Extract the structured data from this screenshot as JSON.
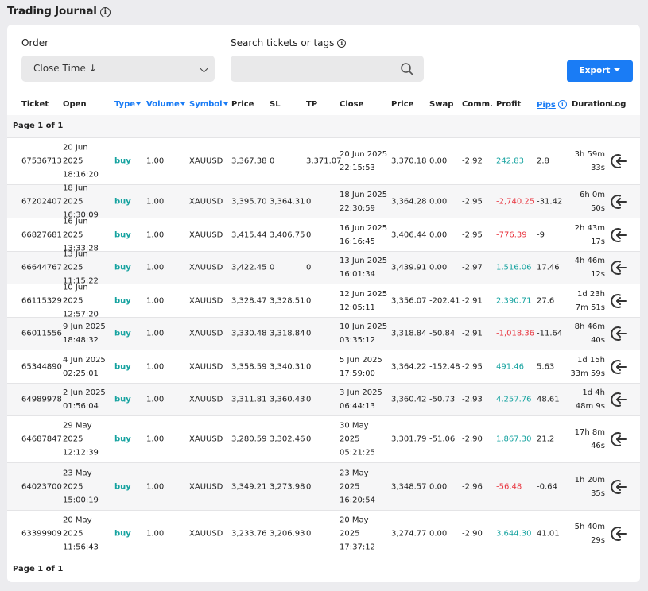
{
  "page": {
    "title": "Trading Journal",
    "title_info_icon": "info-icon"
  },
  "controls": {
    "order_label": "Order",
    "order_value": "Close Time ↓",
    "search_label": "Search tickets or tags",
    "search_value": "",
    "search_placeholder": "",
    "export_label": "Export"
  },
  "columns": {
    "ticket": "Ticket",
    "open": "Open",
    "type": "Type",
    "volume": "Volume",
    "symbol": "Symbol",
    "price": "Price",
    "sl": "SL",
    "tp": "TP",
    "close": "Close",
    "close_price": "Price",
    "swap": "Swap",
    "comm": "Comm.",
    "profit": "Profit",
    "pips": "Pips",
    "duration": "Duration",
    "log": "Log"
  },
  "pagination": {
    "top": "Page 1 of 1",
    "bottom": "Page 1 of 1"
  },
  "colors": {
    "accent": "#1a7cf5",
    "positive": "#16a3a0",
    "negative": "#e8343e",
    "buy": "#16a3a0"
  },
  "rows": [
    {
      "ticket": "67536713",
      "open": "20 Jun 2025 18:16:20",
      "type": "buy",
      "volume": "1.00",
      "symbol": "XAUUSD",
      "price": "3,367.38",
      "sl": "0",
      "tp": "3,371.07",
      "close": "20 Jun 2025 22:15:53",
      "close_price": "3,370.18",
      "swap": "0.00",
      "comm": "-2.92",
      "profit": "242.83",
      "profit_sign": "pos",
      "pips": "2.8",
      "duration": "3h 59m 33s"
    },
    {
      "ticket": "67202407",
      "open": "18 Jun 2025 16:30:09",
      "type": "buy",
      "volume": "1.00",
      "symbol": "XAUUSD",
      "price": "3,395.70",
      "sl": "3,364.31",
      "tp": "0",
      "close": "18 Jun 2025 22:30:59",
      "close_price": "3,364.28",
      "swap": "0.00",
      "comm": "-2.95",
      "profit": "-2,740.25",
      "profit_sign": "neg",
      "pips": "-31.42",
      "duration": "6h 0m 50s"
    },
    {
      "ticket": "66827681",
      "open": "16 Jun 2025 13:33:28",
      "type": "buy",
      "volume": "1.00",
      "symbol": "XAUUSD",
      "price": "3,415.44",
      "sl": "3,406.75",
      "tp": "0",
      "close": "16 Jun 2025 16:16:45",
      "close_price": "3,406.44",
      "swap": "0.00",
      "comm": "-2.95",
      "profit": "-776.39",
      "profit_sign": "neg",
      "pips": "-9",
      "duration": "2h 43m 17s"
    },
    {
      "ticket": "66644767",
      "open": "13 Jun 2025 11:15:22",
      "type": "buy",
      "volume": "1.00",
      "symbol": "XAUUSD",
      "price": "3,422.45",
      "sl": "0",
      "tp": "0",
      "close": "13 Jun 2025 16:01:34",
      "close_price": "3,439.91",
      "swap": "0.00",
      "comm": "-2.97",
      "profit": "1,516.06",
      "profit_sign": "pos",
      "pips": "17.46",
      "duration": "4h 46m 12s"
    },
    {
      "ticket": "66115329",
      "open": "10 Jun 2025 12:57:20",
      "type": "buy",
      "volume": "1.00",
      "symbol": "XAUUSD",
      "price": "3,328.47",
      "sl": "3,328.51",
      "tp": "0",
      "close": "12 Jun 2025 12:05:11",
      "close_price": "3,356.07",
      "swap": "-202.41",
      "comm": "-2.91",
      "profit": "2,390.71",
      "profit_sign": "pos",
      "pips": "27.6",
      "duration": "1d 23h 7m 51s"
    },
    {
      "ticket": "66011556",
      "open": "9 Jun 2025 18:48:32",
      "type": "buy",
      "volume": "1.00",
      "symbol": "XAUUSD",
      "price": "3,330.48",
      "sl": "3,318.84",
      "tp": "0",
      "close": "10 Jun 2025 03:35:12",
      "close_price": "3,318.84",
      "swap": "-50.84",
      "comm": "-2.91",
      "profit": "-1,018.36",
      "profit_sign": "neg",
      "pips": "-11.64",
      "duration": "8h 46m 40s"
    },
    {
      "ticket": "65344890",
      "open": "4 Jun 2025 02:25:01",
      "type": "buy",
      "volume": "1.00",
      "symbol": "XAUUSD",
      "price": "3,358.59",
      "sl": "3,340.31",
      "tp": "0",
      "close": "5 Jun 2025 17:59:00",
      "close_price": "3,364.22",
      "swap": "-152.48",
      "comm": "-2.95",
      "profit": "491.46",
      "profit_sign": "pos",
      "pips": "5.63",
      "duration": "1d 15h 33m 59s"
    },
    {
      "ticket": "64989978",
      "open": "2 Jun 2025 01:56:04",
      "type": "buy",
      "volume": "1.00",
      "symbol": "XAUUSD",
      "price": "3,311.81",
      "sl": "3,360.43",
      "tp": "0",
      "close": "3 Jun 2025 06:44:13",
      "close_price": "3,360.42",
      "swap": "-50.73",
      "comm": "-2.93",
      "profit": "4,257.76",
      "profit_sign": "pos",
      "pips": "48.61",
      "duration": "1d 4h 48m 9s"
    },
    {
      "ticket": "64687847",
      "open": "29 May 2025 12:12:39",
      "type": "buy",
      "volume": "1.00",
      "symbol": "XAUUSD",
      "price": "3,280.59",
      "sl": "3,302.46",
      "tp": "0",
      "close": "30 May 2025 05:21:25",
      "close_price": "3,301.79",
      "swap": "-51.06",
      "comm": "-2.90",
      "profit": "1,867.30",
      "profit_sign": "pos",
      "pips": "21.2",
      "duration": "17h 8m 46s"
    },
    {
      "ticket": "64023700",
      "open": "23 May 2025 15:00:19",
      "type": "buy",
      "volume": "1.00",
      "symbol": "XAUUSD",
      "price": "3,349.21",
      "sl": "3,273.98",
      "tp": "0",
      "close": "23 May 2025 16:20:54",
      "close_price": "3,348.57",
      "swap": "0.00",
      "comm": "-2.96",
      "profit": "-56.48",
      "profit_sign": "neg",
      "pips": "-0.64",
      "duration": "1h 20m 35s"
    },
    {
      "ticket": "63399909",
      "open": "20 May 2025 11:56:43",
      "type": "buy",
      "volume": "1.00",
      "symbol": "XAUUSD",
      "price": "3,233.76",
      "sl": "3,206.93",
      "tp": "0",
      "close": "20 May 2025 17:37:12",
      "close_price": "3,274.77",
      "swap": "0.00",
      "comm": "-2.90",
      "profit": "3,644.30",
      "profit_sign": "pos",
      "pips": "41.01",
      "duration": "5h 40m 29s"
    }
  ]
}
